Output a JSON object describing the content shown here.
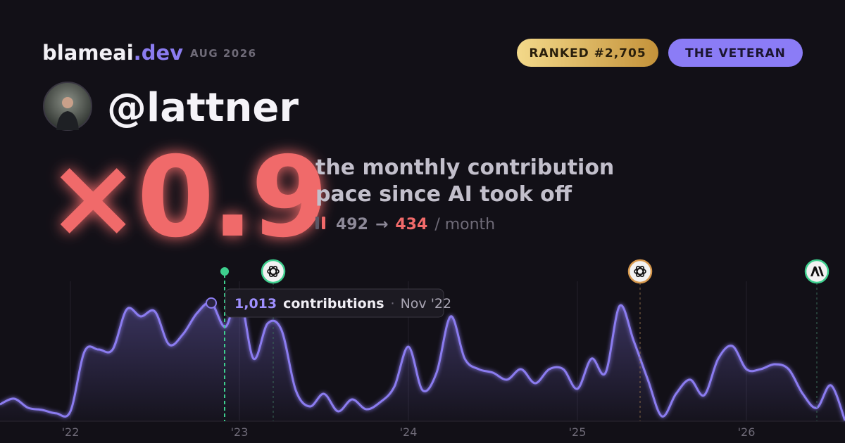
{
  "header": {
    "brand": "blameai",
    "brand_tld": ".dev",
    "period": "AUG 2026",
    "rank_badge": "RANKED #2,705",
    "title_badge": "THE VETERAN",
    "handle": "@lattner"
  },
  "headline": {
    "multiplier": "×0.9",
    "line1": "the monthly contribution",
    "line2": "pace since AI took off",
    "before": "492",
    "arrow": "→",
    "after": "434",
    "unit": "/ month"
  },
  "chart_data": {
    "type": "area",
    "categories": [
      null,
      null,
      null,
      null,
      null,
      "'22",
      null,
      null,
      null,
      null,
      null,
      null,
      null,
      null,
      null,
      null,
      null,
      "'23",
      null,
      null,
      null,
      null,
      null,
      null,
      null,
      null,
      null,
      null,
      null,
      "'24",
      null,
      null,
      null,
      null,
      null,
      null,
      null,
      null,
      null,
      null,
      null,
      "'25",
      null,
      null,
      null,
      null,
      null,
      null,
      null,
      null,
      null,
      null,
      null,
      "'26",
      null,
      null,
      null,
      null,
      null,
      null,
      null
    ],
    "values": [
      139,
      188,
      109,
      91,
      61,
      79,
      594,
      612,
      612,
      958,
      897,
      939,
      655,
      745,
      927,
      1013,
      806,
      1079,
      533,
      836,
      776,
      261,
      121,
      230,
      79,
      182,
      97,
      158,
      291,
      636,
      261,
      412,
      897,
      533,
      442,
      412,
      352,
      442,
      321,
      442,
      442,
      273,
      533,
      412,
      988,
      685,
      352,
      36,
      230,
      352,
      218,
      533,
      642,
      442,
      442,
      485,
      442,
      230,
      109,
      303,
      0
    ],
    "color": "#8b7cf0",
    "ylim": [
      0,
      1200
    ],
    "tooltip": {
      "value": "1,013",
      "label": "contributions",
      "separator": "·",
      "date": "Nov '22"
    }
  }
}
